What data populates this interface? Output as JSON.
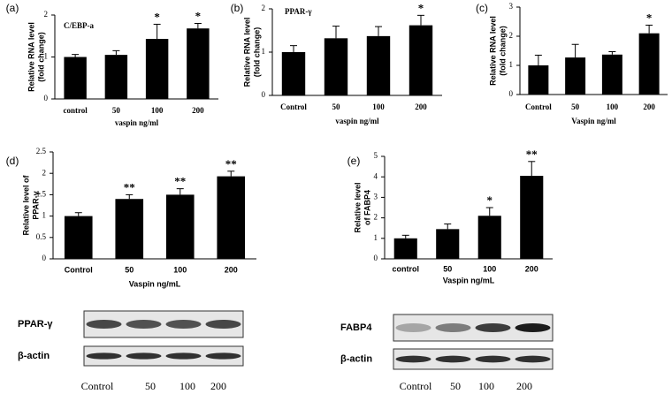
{
  "chart_data": [
    {
      "type": "bar",
      "panel_label": "(a)",
      "annotation": "C/EBP-a",
      "ylabel": [
        "Relative RNA level",
        "(fold change)"
      ],
      "xlabel": "vaspin  ng/ml",
      "categories": [
        "control",
        "50",
        "100",
        "200"
      ],
      "values": [
        1.0,
        1.05,
        1.43,
        1.68
      ],
      "errors": [
        0.06,
        0.1,
        0.35,
        0.12
      ],
      "significance": [
        null,
        null,
        "*",
        "*"
      ],
      "color": "#000000",
      "ylim": [
        0,
        2
      ],
      "yticks": [
        0,
        1,
        2
      ]
    },
    {
      "type": "bar",
      "panel_label": "(b)",
      "annotation": "PPAR-γ",
      "ylabel": [
        "Relative RNA level",
        "(fold change)"
      ],
      "xlabel": "vaspin  ng/ml",
      "categories": [
        "Control",
        "50",
        "100",
        "200"
      ],
      "values": [
        1.0,
        1.32,
        1.37,
        1.62
      ],
      "errors": [
        0.15,
        0.28,
        0.22,
        0.23
      ],
      "significance": [
        null,
        null,
        null,
        "*"
      ],
      "color": "#000000",
      "ylim": [
        0,
        2
      ],
      "yticks": [
        0,
        1,
        2
      ]
    },
    {
      "type": "bar",
      "panel_label": "(c)",
      "ylabel": [
        "Relative RNA level",
        "(fold change)"
      ],
      "xlabel": "Vaspin  ng/ml",
      "categories": [
        "Control",
        "50",
        "100",
        "200"
      ],
      "values": [
        1.0,
        1.27,
        1.37,
        2.1
      ],
      "errors": [
        0.35,
        0.45,
        0.1,
        0.28
      ],
      "significance": [
        null,
        null,
        null,
        "*"
      ],
      "color": "#000000",
      "ylim": [
        0,
        3
      ],
      "yticks": [
        0,
        1,
        2,
        3
      ]
    },
    {
      "type": "bar",
      "panel_label": "(d)",
      "ylabel": [
        "Relative level of",
        "PPAR-γ"
      ],
      "xlabel": "Vaspin ng/mL",
      "categories": [
        "Control",
        "50",
        "100",
        "200"
      ],
      "values": [
        1.0,
        1.4,
        1.5,
        1.93
      ],
      "errors": [
        0.08,
        0.1,
        0.14,
        0.12
      ],
      "significance": [
        null,
        "**",
        "**",
        "**"
      ],
      "color": "#000000",
      "ylim": [
        0,
        2.5
      ],
      "yticks": [
        0,
        0.5,
        1,
        1.5,
        2,
        2.5
      ]
    },
    {
      "type": "bar",
      "panel_label": "(e)",
      "ylabel": [
        "Relative level",
        "of FABP4"
      ],
      "xlabel": "Vaspin ng/mL",
      "categories": [
        "control",
        "50",
        "100",
        "200"
      ],
      "values": [
        1.0,
        1.45,
        2.1,
        4.05
      ],
      "errors": [
        0.15,
        0.25,
        0.4,
        0.7
      ],
      "significance": [
        null,
        null,
        "*",
        "**"
      ],
      "color": "#000000",
      "ylim": [
        0,
        5
      ],
      "yticks": [
        0,
        1,
        2,
        3,
        4,
        5
      ]
    }
  ],
  "blots": [
    {
      "labels": [
        "PPAR-γ",
        "β-actin"
      ],
      "lanes": [
        "Control",
        "50",
        "100",
        "200"
      ]
    },
    {
      "labels": [
        "FABP4",
        "β-actin"
      ],
      "lanes": [
        "Control",
        "50",
        "100",
        "200"
      ]
    }
  ]
}
